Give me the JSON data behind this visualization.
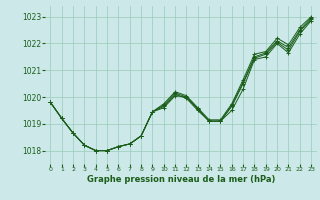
{
  "background_color": "#cce8e8",
  "grid_color": "#99ccbb",
  "line_color": "#1a5e1a",
  "title": "Graphe pression niveau de la mer (hPa)",
  "xlabel_ticks": [
    0,
    1,
    2,
    3,
    4,
    5,
    6,
    7,
    8,
    9,
    10,
    11,
    12,
    13,
    14,
    15,
    16,
    17,
    18,
    19,
    20,
    21,
    22,
    23
  ],
  "yticks": [
    1018,
    1019,
    1020,
    1021,
    1022,
    1023
  ],
  "ylim": [
    1017.5,
    1023.4
  ],
  "xlim": [
    -0.5,
    23.5
  ],
  "series": [
    [
      1019.8,
      1019.2,
      1018.65,
      1018.2,
      1018.0,
      1018.0,
      1018.15,
      1018.25,
      1018.55,
      1019.45,
      1019.6,
      1020.05,
      1020.0,
      1019.55,
      1019.1,
      1019.1,
      1019.5,
      1020.3,
      1021.4,
      1021.5,
      1022.0,
      1021.65,
      1022.35,
      1022.85
    ],
    [
      1019.8,
      1019.2,
      1018.65,
      1018.2,
      1018.0,
      1018.0,
      1018.15,
      1018.25,
      1018.55,
      1019.45,
      1019.65,
      1020.1,
      1019.95,
      1019.5,
      1019.1,
      1019.1,
      1019.65,
      1020.5,
      1021.45,
      1021.6,
      1022.05,
      1021.75,
      1022.45,
      1022.9
    ],
    [
      1019.8,
      1019.2,
      1018.65,
      1018.2,
      1018.0,
      1018.0,
      1018.15,
      1018.25,
      1018.55,
      1019.45,
      1019.7,
      1020.15,
      1020.0,
      1019.55,
      1019.1,
      1019.1,
      1019.7,
      1020.55,
      1021.5,
      1021.65,
      1022.1,
      1021.85,
      1022.5,
      1022.95
    ],
    [
      1019.8,
      1019.2,
      1018.65,
      1018.2,
      1018.0,
      1018.0,
      1018.15,
      1018.25,
      1018.55,
      1019.45,
      1019.75,
      1020.2,
      1020.05,
      1019.6,
      1019.15,
      1019.15,
      1019.75,
      1020.65,
      1021.6,
      1021.7,
      1022.2,
      1021.95,
      1022.6,
      1023.0
    ]
  ]
}
